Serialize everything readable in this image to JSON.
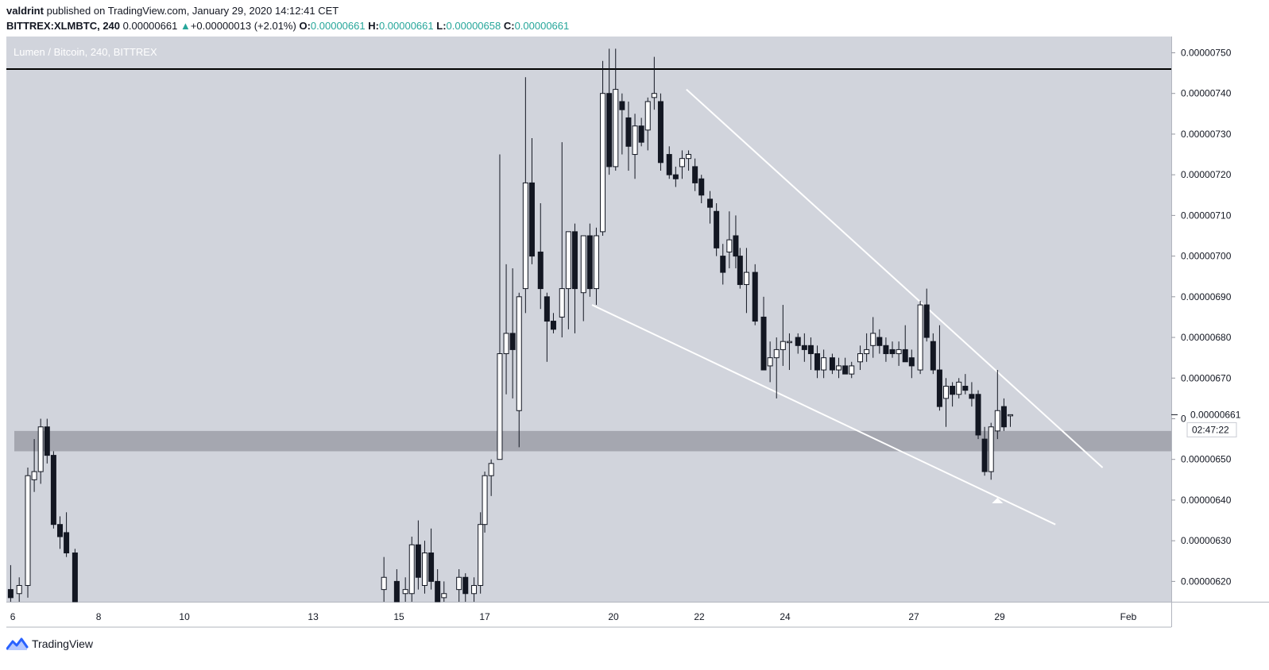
{
  "header": {
    "author": "valdrint",
    "published_text": "published on TradingView.com, January 29, 2020 14:12:41 CET",
    "symbol": "BITTREX:XLMBTC, 240",
    "last": "0.00000661",
    "change_arrow": "▲",
    "change": "+0.00000013 (+2.01%)",
    "o_label": "O:",
    "o_value": "0.00000661",
    "h_label": "H:",
    "h_value": "0.00000661",
    "l_label": "L:",
    "l_value": "0.00000658",
    "c_label": "C:",
    "c_value": "0.00000661"
  },
  "footer": {
    "brand": "TradingView",
    "logo_icon": "tradingview-logo-icon"
  },
  "colors": {
    "plot_bg": "#d1d4dc",
    "bull_fill": "#ffffff",
    "bear_fill": "#131722",
    "wick": "#131722",
    "channel_line": "#ffffff",
    "resistance": "#000000",
    "zone": "#9598a1",
    "last_price_line": "#131722"
  },
  "chart_data": {
    "type": "candlestick",
    "title": "Lumen / Bitcoin, 240, BITTREX",
    "ylim": [
      6.15e-06,
      7.54e-06
    ],
    "y_ticks": [
      "0.00000620",
      "0.00000630",
      "0.00000640",
      "0.00000650",
      "0.00000660",
      "0.00000670",
      "0.00000680",
      "0.00000690",
      "0.00000700",
      "0.00000710",
      "0.00000720",
      "0.00000730",
      "0.00000740",
      "0.00000750"
    ],
    "x_ticks": [
      {
        "label": "6",
        "day": 6
      },
      {
        "label": "8",
        "day": 8
      },
      {
        "label": "10",
        "day": 10
      },
      {
        "label": "13",
        "day": 13
      },
      {
        "label": "15",
        "day": 15
      },
      {
        "label": "17",
        "day": 17
      },
      {
        "label": "20",
        "day": 20
      },
      {
        "label": "22",
        "day": 22
      },
      {
        "label": "24",
        "day": 24
      },
      {
        "label": "27",
        "day": 27
      },
      {
        "label": "29",
        "day": 29
      },
      {
        "label": "Feb",
        "day": 32
      }
    ],
    "xlim_days": [
      5.85,
      33.0
    ],
    "last_price": "0.00000661",
    "countdown": "02:47:22",
    "resistance_level": 7.46e-06,
    "support_zone": [
      6.52e-06,
      6.57e-06
    ],
    "channel": {
      "upper": [
        {
          "day": 21.7,
          "price": 7.41e-06
        },
        {
          "day": 31.4,
          "price": 6.48e-06
        }
      ],
      "lower": [
        {
          "day": 19.5,
          "price": 6.88e-06
        },
        {
          "day": 30.3,
          "price": 6.34e-06
        }
      ]
    },
    "marker": {
      "type": "arrow-up",
      "day": 28.95,
      "price": 6.4e-06
    },
    "candles": [
      {
        "d": 5.95,
        "o": 6.18,
        "h": 6.24,
        "l": 6.15,
        "c": 6.16
      },
      {
        "d": 6.15,
        "o": 6.17,
        "h": 6.21,
        "l": 6.15,
        "c": 6.19
      },
      {
        "d": 6.35,
        "o": 6.19,
        "h": 6.48,
        "l": 6.16,
        "c": 6.46
      },
      {
        "d": 6.5,
        "o": 6.45,
        "h": 6.55,
        "l": 6.42,
        "c": 6.47
      },
      {
        "d": 6.65,
        "o": 6.47,
        "h": 6.6,
        "l": 6.44,
        "c": 6.58
      },
      {
        "d": 6.8,
        "o": 6.58,
        "h": 6.6,
        "l": 6.49,
        "c": 6.51
      },
      {
        "d": 6.95,
        "o": 6.51,
        "h": 6.52,
        "l": 6.33,
        "c": 6.34
      },
      {
        "d": 7.1,
        "o": 6.34,
        "h": 6.36,
        "l": 6.28,
        "c": 6.31
      },
      {
        "d": 7.25,
        "o": 6.32,
        "h": 6.37,
        "l": 6.26,
        "c": 6.27
      },
      {
        "d": 7.45,
        "o": 6.27,
        "h": 6.28,
        "l": 6.12,
        "c": 6.14
      },
      {
        "d": 14.65,
        "o": 6.18,
        "h": 6.26,
        "l": 6.15,
        "c": 6.21
      },
      {
        "d": 14.95,
        "o": 6.2,
        "h": 6.23,
        "l": 6.14,
        "c": 6.15
      },
      {
        "d": 15.15,
        "o": 6.17,
        "h": 6.21,
        "l": 6.13,
        "c": 6.18
      },
      {
        "d": 15.3,
        "o": 6.17,
        "h": 6.31,
        "l": 6.15,
        "c": 6.29
      },
      {
        "d": 15.45,
        "o": 6.29,
        "h": 6.35,
        "l": 6.18,
        "c": 6.21
      },
      {
        "d": 15.6,
        "o": 6.19,
        "h": 6.3,
        "l": 6.17,
        "c": 6.27
      },
      {
        "d": 15.75,
        "o": 6.27,
        "h": 6.33,
        "l": 6.18,
        "c": 6.2
      },
      {
        "d": 15.9,
        "o": 6.2,
        "h": 6.23,
        "l": 6.14,
        "c": 6.15
      },
      {
        "d": 16.05,
        "o": 6.16,
        "h": 6.2,
        "l": 6.13,
        "c": 6.17
      },
      {
        "d": 16.4,
        "o": 6.18,
        "h": 6.23,
        "l": 6.14,
        "c": 6.21
      },
      {
        "d": 16.55,
        "o": 6.21,
        "h": 6.22,
        "l": 6.15,
        "c": 6.17
      },
      {
        "d": 16.75,
        "o": 6.17,
        "h": 6.21,
        "l": 6.15,
        "c": 6.19
      },
      {
        "d": 16.9,
        "o": 6.19,
        "h": 6.37,
        "l": 6.17,
        "c": 6.34
      },
      {
        "d": 17.0,
        "o": 6.34,
        "h": 6.47,
        "l": 6.32,
        "c": 6.46
      },
      {
        "d": 17.15,
        "o": 6.46,
        "h": 6.5,
        "l": 6.41,
        "c": 6.49
      },
      {
        "d": 17.35,
        "o": 6.5,
        "h": 7.25,
        "l": 6.5,
        "c": 6.76
      },
      {
        "d": 17.5,
        "o": 6.76,
        "h": 6.98,
        "l": 6.66,
        "c": 6.81
      },
      {
        "d": 17.65,
        "o": 6.81,
        "h": 6.97,
        "l": 6.65,
        "c": 6.77
      },
      {
        "d": 17.8,
        "o": 6.62,
        "h": 6.91,
        "l": 6.53,
        "c": 6.9
      },
      {
        "d": 17.95,
        "o": 6.92,
        "h": 7.44,
        "l": 6.86,
        "c": 7.18
      },
      {
        "d": 18.1,
        "o": 7.18,
        "h": 7.29,
        "l": 6.98,
        "c": 7.0
      },
      {
        "d": 18.3,
        "o": 7.01,
        "h": 7.13,
        "l": 6.87,
        "c": 6.92
      },
      {
        "d": 18.45,
        "o": 6.9,
        "h": 6.91,
        "l": 6.74,
        "c": 6.84
      },
      {
        "d": 18.6,
        "o": 6.84,
        "h": 6.86,
        "l": 6.81,
        "c": 6.82
      },
      {
        "d": 18.8,
        "o": 6.85,
        "h": 7.28,
        "l": 6.8,
        "c": 6.92
      },
      {
        "d": 18.95,
        "o": 6.92,
        "h": 7.06,
        "l": 6.82,
        "c": 7.06
      },
      {
        "d": 19.1,
        "o": 7.06,
        "h": 7.08,
        "l": 6.81,
        "c": 6.92
      },
      {
        "d": 19.3,
        "o": 6.91,
        "h": 7.05,
        "l": 6.84,
        "c": 7.05
      },
      {
        "d": 19.45,
        "o": 7.05,
        "h": 7.08,
        "l": 6.9,
        "c": 6.92
      },
      {
        "d": 19.6,
        "o": 6.92,
        "h": 7.07,
        "l": 6.88,
        "c": 7.05
      },
      {
        "d": 19.75,
        "o": 7.06,
        "h": 7.48,
        "l": 7.05,
        "c": 7.4
      },
      {
        "d": 19.9,
        "o": 7.4,
        "h": 7.51,
        "l": 7.2,
        "c": 7.22
      },
      {
        "d": 20.05,
        "o": 7.22,
        "h": 7.51,
        "l": 7.21,
        "c": 7.41
      },
      {
        "d": 20.2,
        "o": 7.38,
        "h": 7.4,
        "l": 7.25,
        "c": 7.36
      },
      {
        "d": 20.35,
        "o": 7.34,
        "h": 7.38,
        "l": 7.21,
        "c": 7.27
      },
      {
        "d": 20.5,
        "o": 7.25,
        "h": 7.35,
        "l": 7.19,
        "c": 7.32
      },
      {
        "d": 20.65,
        "o": 7.32,
        "h": 7.34,
        "l": 7.27,
        "c": 7.28
      },
      {
        "d": 20.8,
        "o": 7.31,
        "h": 7.39,
        "l": 7.26,
        "c": 7.38
      },
      {
        "d": 20.95,
        "o": 7.39,
        "h": 7.49,
        "l": 7.36,
        "c": 7.4
      },
      {
        "d": 21.1,
        "o": 7.38,
        "h": 7.4,
        "l": 7.21,
        "c": 7.23
      },
      {
        "d": 21.3,
        "o": 7.25,
        "h": 7.27,
        "l": 7.19,
        "c": 7.2
      },
      {
        "d": 21.45,
        "o": 7.2,
        "h": 7.22,
        "l": 7.17,
        "c": 7.19
      },
      {
        "d": 21.6,
        "o": 7.22,
        "h": 7.26,
        "l": 7.19,
        "c": 7.24
      },
      {
        "d": 21.75,
        "o": 7.24,
        "h": 7.26,
        "l": 7.21,
        "c": 7.25
      },
      {
        "d": 21.9,
        "o": 7.22,
        "h": 7.24,
        "l": 7.16,
        "c": 7.18
      },
      {
        "d": 22.05,
        "o": 7.19,
        "h": 7.2,
        "l": 7.13,
        "c": 7.15
      },
      {
        "d": 22.25,
        "o": 7.14,
        "h": 7.16,
        "l": 7.08,
        "c": 7.12
      },
      {
        "d": 22.4,
        "o": 7.11,
        "h": 7.13,
        "l": 7.0,
        "c": 7.02
      },
      {
        "d": 22.55,
        "o": 7.0,
        "h": 7.03,
        "l": 6.93,
        "c": 6.96
      },
      {
        "d": 22.7,
        "o": 7.01,
        "h": 7.11,
        "l": 6.97,
        "c": 7.04
      },
      {
        "d": 22.85,
        "o": 7.05,
        "h": 7.1,
        "l": 6.97,
        "c": 7.0
      },
      {
        "d": 22.95,
        "o": 7.0,
        "h": 7.02,
        "l": 6.92,
        "c": 6.93
      },
      {
        "d": 23.1,
        "o": 6.93,
        "h": 7.02,
        "l": 6.86,
        "c": 6.96
      },
      {
        "d": 23.3,
        "o": 6.96,
        "h": 6.98,
        "l": 6.83,
        "c": 6.84
      },
      {
        "d": 23.5,
        "o": 6.85,
        "h": 6.9,
        "l": 6.72,
        "c": 6.72
      },
      {
        "d": 23.65,
        "o": 6.73,
        "h": 6.79,
        "l": 6.69,
        "c": 6.75
      },
      {
        "d": 23.8,
        "o": 6.75,
        "h": 6.8,
        "l": 6.65,
        "c": 6.77
      },
      {
        "d": 23.95,
        "o": 6.77,
        "h": 6.88,
        "l": 6.73,
        "c": 6.79
      },
      {
        "d": 24.1,
        "o": 6.79,
        "h": 6.81,
        "l": 6.72,
        "c": 6.79
      },
      {
        "d": 24.3,
        "o": 6.8,
        "h": 6.81,
        "l": 6.76,
        "c": 6.78
      },
      {
        "d": 24.45,
        "o": 6.78,
        "h": 6.81,
        "l": 6.74,
        "c": 6.77
      },
      {
        "d": 24.6,
        "o": 6.78,
        "h": 6.8,
        "l": 6.72,
        "c": 6.76
      },
      {
        "d": 24.75,
        "o": 6.76,
        "h": 6.78,
        "l": 6.7,
        "c": 6.72
      },
      {
        "d": 24.9,
        "o": 6.72,
        "h": 6.77,
        "l": 6.7,
        "c": 6.75
      },
      {
        "d": 25.1,
        "o": 6.75,
        "h": 6.76,
        "l": 6.71,
        "c": 6.72
      },
      {
        "d": 25.25,
        "o": 6.72,
        "h": 6.75,
        "l": 6.7,
        "c": 6.73
      },
      {
        "d": 25.4,
        "o": 6.73,
        "h": 6.75,
        "l": 6.71,
        "c": 6.71
      },
      {
        "d": 25.55,
        "o": 6.71,
        "h": 6.74,
        "l": 6.7,
        "c": 6.73
      },
      {
        "d": 25.75,
        "o": 6.74,
        "h": 6.78,
        "l": 6.72,
        "c": 6.76
      },
      {
        "d": 25.9,
        "o": 6.76,
        "h": 6.81,
        "l": 6.74,
        "c": 6.77
      },
      {
        "d": 26.05,
        "o": 6.78,
        "h": 6.85,
        "l": 6.75,
        "c": 6.81
      },
      {
        "d": 26.2,
        "o": 6.8,
        "h": 6.82,
        "l": 6.76,
        "c": 6.78
      },
      {
        "d": 26.35,
        "o": 6.78,
        "h": 6.8,
        "l": 6.74,
        "c": 6.76
      },
      {
        "d": 26.5,
        "o": 6.77,
        "h": 6.79,
        "l": 6.75,
        "c": 6.76
      },
      {
        "d": 26.65,
        "o": 6.76,
        "h": 6.79,
        "l": 6.73,
        "c": 6.77
      },
      {
        "d": 26.8,
        "o": 6.77,
        "h": 6.83,
        "l": 6.74,
        "c": 6.74
      },
      {
        "d": 26.95,
        "o": 6.75,
        "h": 6.77,
        "l": 6.7,
        "c": 6.73
      },
      {
        "d": 27.15,
        "o": 6.72,
        "h": 6.89,
        "l": 6.71,
        "c": 6.88
      },
      {
        "d": 27.3,
        "o": 6.88,
        "h": 6.92,
        "l": 6.79,
        "c": 6.8
      },
      {
        "d": 27.45,
        "o": 6.79,
        "h": 6.81,
        "l": 6.71,
        "c": 6.72
      },
      {
        "d": 27.6,
        "o": 6.72,
        "h": 6.83,
        "l": 6.62,
        "c": 6.63
      },
      {
        "d": 27.75,
        "o": 6.65,
        "h": 6.7,
        "l": 6.58,
        "c": 6.68
      },
      {
        "d": 27.9,
        "o": 6.68,
        "h": 6.69,
        "l": 6.63,
        "c": 6.66
      },
      {
        "d": 28.05,
        "o": 6.66,
        "h": 6.7,
        "l": 6.65,
        "c": 6.69
      },
      {
        "d": 28.2,
        "o": 6.68,
        "h": 6.71,
        "l": 6.66,
        "c": 6.67
      },
      {
        "d": 28.35,
        "o": 6.66,
        "h": 6.69,
        "l": 6.63,
        "c": 6.65
      },
      {
        "d": 28.5,
        "o": 6.66,
        "h": 6.67,
        "l": 6.55,
        "c": 6.56
      },
      {
        "d": 28.65,
        "o": 6.55,
        "h": 6.58,
        "l": 6.46,
        "c": 6.47
      },
      {
        "d": 28.8,
        "o": 6.47,
        "h": 6.59,
        "l": 6.45,
        "c": 6.58
      },
      {
        "d": 28.95,
        "o": 6.57,
        "h": 6.72,
        "l": 6.55,
        "c": 6.62
      },
      {
        "d": 29.1,
        "o": 6.63,
        "h": 6.65,
        "l": 6.57,
        "c": 6.58
      },
      {
        "d": 29.25,
        "o": 6.61,
        "h": 6.61,
        "l": 6.58,
        "c": 6.61
      }
    ]
  }
}
